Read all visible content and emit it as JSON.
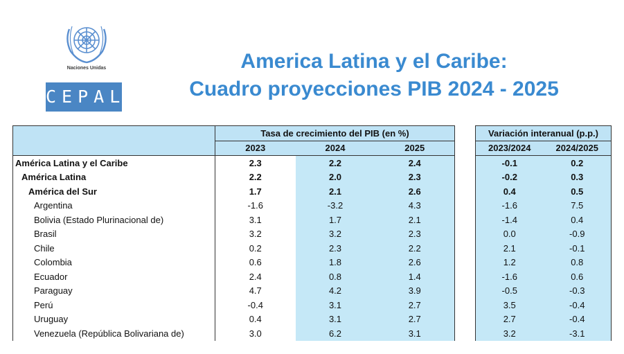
{
  "header": {
    "org_name": "Naciones Unidas",
    "org_label": "NACIONES UNIDAS",
    "brand": "CEPAL",
    "title_line1": "America Latina y el Caribe:",
    "title_line2": "Cuadro proyecciones PIB 2024 - 2025"
  },
  "table_growth": {
    "group_header": "Tasa de crecimiento del PIB (en %)",
    "columns": [
      "2023",
      "2024",
      "2025"
    ]
  },
  "table_variation": {
    "group_header": "Variación interanual (p.p.)",
    "columns": [
      "2023/2024",
      "2024/2025"
    ]
  },
  "rows": [
    {
      "name": "América Latina y el Caribe",
      "g": [
        "2.3",
        "2.2",
        "2.4"
      ],
      "v": [
        "-0.1",
        "0.2"
      ]
    },
    {
      "name": "América Latina",
      "g": [
        "2.2",
        "2.0",
        "2.3"
      ],
      "v": [
        "-0.2",
        "0.3"
      ]
    },
    {
      "name": "América del Sur",
      "g": [
        "1.7",
        "2.1",
        "2.6"
      ],
      "v": [
        "0.4",
        "0.5"
      ]
    },
    {
      "name": "Argentina",
      "g": [
        "-1.6",
        "-3.2",
        "4.3"
      ],
      "v": [
        "-1.6",
        "7.5"
      ]
    },
    {
      "name": "Bolivia (Estado Plurinacional de)",
      "g": [
        "3.1",
        "1.7",
        "2.1"
      ],
      "v": [
        "-1.4",
        "0.4"
      ]
    },
    {
      "name": "Brasil",
      "g": [
        "3.2",
        "3.2",
        "2.3"
      ],
      "v": [
        "0.0",
        "-0.9"
      ]
    },
    {
      "name": "Chile",
      "g": [
        "0.2",
        "2.3",
        "2.2"
      ],
      "v": [
        "2.1",
        "-0.1"
      ]
    },
    {
      "name": "Colombia",
      "g": [
        "0.6",
        "1.8",
        "2.6"
      ],
      "v": [
        "1.2",
        "0.8"
      ]
    },
    {
      "name": "Ecuador",
      "g": [
        "2.4",
        "0.8",
        "1.4"
      ],
      "v": [
        "-1.6",
        "0.6"
      ]
    },
    {
      "name": "Paraguay",
      "g": [
        "4.7",
        "4.2",
        "3.9"
      ],
      "v": [
        "-0.5",
        "-0.3"
      ]
    },
    {
      "name": "Perú",
      "g": [
        "-0.4",
        "3.1",
        "2.7"
      ],
      "v": [
        "3.5",
        "-0.4"
      ]
    },
    {
      "name": "Uruguay",
      "g": [
        "0.4",
        "3.1",
        "2.7"
      ],
      "v": [
        "2.7",
        "-0.4"
      ]
    },
    {
      "name": "Venezuela (República Bolivariana de)",
      "g": [
        "3.0",
        "6.2",
        "3.1"
      ],
      "v": [
        "3.2",
        "-3.1"
      ]
    }
  ]
}
